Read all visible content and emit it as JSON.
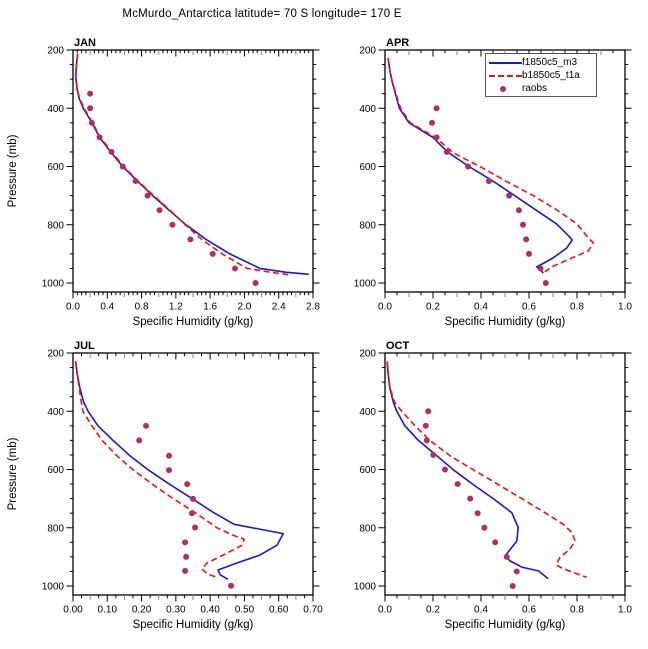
{
  "title": "McMurdo_Antarctica  latitude= 70 S longitude= 170 E",
  "xlabel": "Specific Humidity (g/kg)",
  "ylabel": "Pressure (mb)",
  "colors": {
    "f1850c5_m3": "#1a1acd",
    "b1850c5_t1a": "#ee1111",
    "raobs": "#b02f5f",
    "axis": "#000000",
    "semi_tick": "#888888"
  },
  "legend": {
    "entries": [
      {
        "label": "f1850c5_m3",
        "style": "solid"
      },
      {
        "label": "b1850c5_t1a",
        "style": "dashed"
      },
      {
        "label": "raobs",
        "style": "marker"
      }
    ]
  },
  "chart_data": [
    {
      "title": "JAN",
      "type": "line",
      "xlim": [
        0,
        2.8
      ],
      "xticks": [
        0.0,
        0.4,
        0.8,
        1.2,
        1.6,
        2.0,
        2.4,
        2.8
      ],
      "xtick_labels": [
        "0.0",
        "0.4",
        "0.8",
        "1.2",
        "1.6",
        "2.0",
        "2.4",
        "2.8"
      ],
      "x_semi_step": 0.2,
      "x_minor_step": 0.05,
      "ylim": [
        200,
        1031
      ],
      "yticks": [
        200,
        400,
        600,
        800,
        1000
      ],
      "ytick_labels": [
        "200",
        "400",
        "600",
        "800",
        "1000"
      ],
      "y_minor_step": 50,
      "series": [
        {
          "name": "f1850c5_m3",
          "style": "line",
          "color_key": "f1850c5_m3",
          "points": [
            [
              0.055,
              213
            ],
            [
              0.04,
              250
            ],
            [
              0.032,
              290
            ],
            [
              0.045,
              330
            ],
            [
              0.07,
              365
            ],
            [
              0.12,
              400
            ],
            [
              0.17,
              425
            ],
            [
              0.22,
              450
            ],
            [
              0.31,
              500
            ],
            [
              0.44,
              550
            ],
            [
              0.58,
              600
            ],
            [
              0.75,
              650
            ],
            [
              0.93,
              700
            ],
            [
              1.12,
              750
            ],
            [
              1.32,
              800
            ],
            [
              1.55,
              850
            ],
            [
              1.83,
              900
            ],
            [
              2.18,
              950
            ],
            [
              2.48,
              963
            ],
            [
              2.75,
              970
            ]
          ]
        },
        {
          "name": "b1850c5_t1a",
          "style": "dashed",
          "color_key": "b1850c5_t1a",
          "points": [
            [
              0.055,
              213
            ],
            [
              0.042,
              250
            ],
            [
              0.034,
              290
            ],
            [
              0.048,
              330
            ],
            [
              0.075,
              365
            ],
            [
              0.128,
              400
            ],
            [
              0.178,
              425
            ],
            [
              0.228,
              450
            ],
            [
              0.32,
              500
            ],
            [
              0.452,
              550
            ],
            [
              0.592,
              600
            ],
            [
              0.76,
              650
            ],
            [
              0.94,
              700
            ],
            [
              1.13,
              750
            ],
            [
              1.31,
              800
            ],
            [
              1.5,
              850
            ],
            [
              1.74,
              900
            ],
            [
              2.03,
              950
            ],
            [
              2.3,
              963
            ],
            [
              2.55,
              973
            ]
          ]
        },
        {
          "name": "raobs",
          "style": "markers",
          "color_key": "raobs",
          "points": [
            [
              0.2,
              350
            ],
            [
              0.2,
              400
            ],
            [
              0.22,
              450
            ],
            [
              0.31,
              500
            ],
            [
              0.45,
              550
            ],
            [
              0.58,
              600
            ],
            [
              0.73,
              650
            ],
            [
              0.87,
              700
            ],
            [
              1.01,
              750
            ],
            [
              1.16,
              800
            ],
            [
              1.37,
              850
            ],
            [
              1.63,
              900
            ],
            [
              1.89,
              950
            ],
            [
              2.13,
              1000
            ]
          ]
        }
      ]
    },
    {
      "title": "APR",
      "type": "line",
      "xlim": [
        0,
        1.0
      ],
      "xticks": [
        0.0,
        0.2,
        0.4,
        0.6,
        0.8,
        1.0
      ],
      "xtick_labels": [
        "0.0",
        "0.2",
        "0.4",
        "0.6",
        "0.8",
        "1.0"
      ],
      "x_semi_step": 0.1,
      "x_minor_step": 0.05,
      "ylim": [
        200,
        1031
      ],
      "yticks": [
        200,
        400,
        600,
        800,
        1000
      ],
      "ytick_labels": [
        "200",
        "400",
        "600",
        "800",
        "1000"
      ],
      "y_minor_step": 50,
      "has_legend": true,
      "series": [
        {
          "name": "f1850c5_m3",
          "style": "line",
          "color_key": "f1850c5_m3",
          "points": [
            [
              0.013,
              228
            ],
            [
              0.02,
              270
            ],
            [
              0.03,
              310
            ],
            [
              0.045,
              355
            ],
            [
              0.06,
              400
            ],
            [
              0.1,
              450
            ],
            [
              0.2,
              500
            ],
            [
              0.26,
              550
            ],
            [
              0.35,
              600
            ],
            [
              0.45,
              650
            ],
            [
              0.54,
              700
            ],
            [
              0.63,
              750
            ],
            [
              0.715,
              797
            ],
            [
              0.765,
              838
            ],
            [
              0.78,
              852
            ],
            [
              0.757,
              880
            ],
            [
              0.7,
              914
            ],
            [
              0.632,
              945
            ],
            [
              0.645,
              952
            ],
            [
              0.659,
              966
            ]
          ]
        },
        {
          "name": "b1850c5_t1a",
          "style": "dashed",
          "color_key": "b1850c5_t1a",
          "points": [
            [
              0.013,
              228
            ],
            [
              0.02,
              270
            ],
            [
              0.031,
              310
            ],
            [
              0.047,
              355
            ],
            [
              0.065,
              400
            ],
            [
              0.105,
              450
            ],
            [
              0.21,
              500
            ],
            [
              0.284,
              553
            ],
            [
              0.4,
              602
            ],
            [
              0.51,
              653
            ],
            [
              0.62,
              701
            ],
            [
              0.716,
              749
            ],
            [
              0.8,
              797
            ],
            [
              0.847,
              845
            ],
            [
              0.868,
              862
            ],
            [
              0.847,
              890
            ],
            [
              0.77,
              917
            ],
            [
              0.694,
              945
            ],
            [
              0.666,
              962
            ]
          ]
        },
        {
          "name": "raobs",
          "style": "markers",
          "color_key": "raobs",
          "points": [
            [
              0.215,
              400
            ],
            [
              0.196,
              450
            ],
            [
              0.215,
              500
            ],
            [
              0.258,
              550
            ],
            [
              0.346,
              600
            ],
            [
              0.433,
              650
            ],
            [
              0.517,
              700
            ],
            [
              0.558,
              750
            ],
            [
              0.575,
              800
            ],
            [
              0.588,
              850
            ],
            [
              0.6,
              900
            ],
            [
              0.648,
              950
            ],
            [
              0.67,
              1000
            ]
          ]
        }
      ]
    },
    {
      "title": "JUL",
      "type": "line",
      "xlim": [
        0,
        0.7
      ],
      "xticks": [
        0.0,
        0.1,
        0.2,
        0.3,
        0.4,
        0.5,
        0.6,
        0.7
      ],
      "xtick_labels": [
        "0.00",
        "0.10",
        "0.20",
        "0.30",
        "0.40",
        "0.50",
        "0.60",
        "0.70"
      ],
      "x_semi_step": 0.05,
      "x_minor_step": 0.025,
      "ylim": [
        200,
        1031
      ],
      "yticks": [
        200,
        400,
        600,
        800,
        1000
      ],
      "ytick_labels": [
        "200",
        "400",
        "600",
        "800",
        "1000"
      ],
      "y_minor_step": 50,
      "series": [
        {
          "name": "f1850c5_m3",
          "style": "line",
          "color_key": "f1850c5_m3",
          "points": [
            [
              0.008,
              228
            ],
            [
              0.012,
              270
            ],
            [
              0.02,
              320
            ],
            [
              0.03,
              365
            ],
            [
              0.044,
              400
            ],
            [
              0.073,
              450
            ],
            [
              0.117,
              500
            ],
            [
              0.166,
              553
            ],
            [
              0.219,
              601
            ],
            [
              0.283,
              652
            ],
            [
              0.347,
              700
            ],
            [
              0.41,
              748
            ],
            [
              0.47,
              788
            ],
            [
              0.55,
              806
            ],
            [
              0.613,
              820
            ],
            [
              0.595,
              860
            ],
            [
              0.545,
              894
            ],
            [
              0.478,
              921
            ],
            [
              0.423,
              945
            ],
            [
              0.43,
              962
            ],
            [
              0.452,
              977
            ]
          ]
        },
        {
          "name": "b1850c5_t1a",
          "style": "dashed",
          "color_key": "b1850c5_t1a",
          "points": [
            [
              0.008,
              228
            ],
            [
              0.012,
              270
            ],
            [
              0.018,
              320
            ],
            [
              0.024,
              365
            ],
            [
              0.029,
              400
            ],
            [
              0.055,
              450
            ],
            [
              0.085,
              500
            ],
            [
              0.128,
              553
            ],
            [
              0.175,
              601
            ],
            [
              0.233,
              652
            ],
            [
              0.292,
              700
            ],
            [
              0.356,
              748
            ],
            [
              0.42,
              800
            ],
            [
              0.467,
              826
            ],
            [
              0.499,
              839
            ],
            [
              0.493,
              860
            ],
            [
              0.438,
              894
            ],
            [
              0.391,
              921
            ],
            [
              0.376,
              941
            ],
            [
              0.391,
              958
            ],
            [
              0.423,
              972
            ]
          ]
        },
        {
          "name": "raobs",
          "style": "markers",
          "color_key": "raobs",
          "points": [
            [
              0.213,
              450
            ],
            [
              0.193,
              500
            ],
            [
              0.28,
              553
            ],
            [
              0.28,
              602
            ],
            [
              0.333,
              650
            ],
            [
              0.35,
              701
            ],
            [
              0.347,
              750
            ],
            [
              0.356,
              799
            ],
            [
              0.327,
              850
            ],
            [
              0.33,
              900
            ],
            [
              0.327,
              948
            ],
            [
              0.461,
              999
            ]
          ]
        }
      ]
    },
    {
      "title": "OCT",
      "type": "line",
      "xlim": [
        0,
        1.0
      ],
      "xticks": [
        0.0,
        0.2,
        0.4,
        0.6,
        0.8,
        1.0
      ],
      "xtick_labels": [
        "0.0",
        "0.2",
        "0.4",
        "0.6",
        "0.8",
        "1.0"
      ],
      "x_semi_step": 0.1,
      "x_minor_step": 0.05,
      "ylim": [
        200,
        1031
      ],
      "yticks": [
        200,
        400,
        600,
        800,
        1000
      ],
      "ytick_labels": [
        "200",
        "400",
        "600",
        "800",
        "1000"
      ],
      "y_minor_step": 50,
      "series": [
        {
          "name": "f1850c5_m3",
          "style": "line",
          "color_key": "f1850c5_m3",
          "points": [
            [
              0.009,
              230
            ],
            [
              0.013,
              270
            ],
            [
              0.02,
              320
            ],
            [
              0.035,
              370
            ],
            [
              0.049,
              400
            ],
            [
              0.083,
              450
            ],
            [
              0.139,
              500
            ],
            [
              0.216,
              553
            ],
            [
              0.285,
              601
            ],
            [
              0.368,
              652
            ],
            [
              0.451,
              700
            ],
            [
              0.528,
              748
            ],
            [
              0.555,
              799
            ],
            [
              0.549,
              846
            ],
            [
              0.5,
              897
            ],
            [
              0.522,
              914
            ],
            [
              0.57,
              935
            ],
            [
              0.639,
              948
            ],
            [
              0.68,
              975
            ]
          ]
        },
        {
          "name": "b1850c5_t1a",
          "style": "dashed",
          "color_key": "b1850c5_t1a",
          "points": [
            [
              0.009,
              230
            ],
            [
              0.013,
              270
            ],
            [
              0.021,
              320
            ],
            [
              0.04,
              370
            ],
            [
              0.07,
              400
            ],
            [
              0.125,
              450
            ],
            [
              0.187,
              500
            ],
            [
              0.271,
              553
            ],
            [
              0.368,
              601
            ],
            [
              0.472,
              652
            ],
            [
              0.57,
              700
            ],
            [
              0.666,
              748
            ],
            [
              0.743,
              788
            ],
            [
              0.778,
              816
            ],
            [
              0.792,
              845
            ],
            [
              0.77,
              874
            ],
            [
              0.729,
              901
            ],
            [
              0.713,
              928
            ],
            [
              0.743,
              941
            ],
            [
              0.84,
              970
            ]
          ]
        },
        {
          "name": "raobs",
          "style": "markers",
          "color_key": "raobs",
          "points": [
            [
              0.18,
              400
            ],
            [
              0.17,
              450
            ],
            [
              0.174,
              500
            ],
            [
              0.201,
              550
            ],
            [
              0.25,
              600
            ],
            [
              0.303,
              650
            ],
            [
              0.355,
              700
            ],
            [
              0.386,
              750
            ],
            [
              0.414,
              800
            ],
            [
              0.459,
              850
            ],
            [
              0.507,
              900
            ],
            [
              0.549,
              950
            ],
            [
              0.532,
              1000
            ]
          ]
        }
      ]
    }
  ]
}
